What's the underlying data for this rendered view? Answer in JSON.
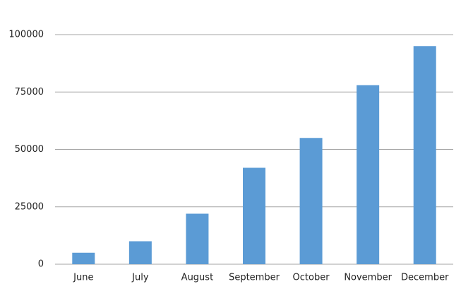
{
  "chart_data": {
    "type": "bar",
    "categories": [
      "June",
      "July",
      "August",
      "September",
      "October",
      "November",
      "December"
    ],
    "values": [
      5000,
      10000,
      22000,
      42000,
      55000,
      78000,
      95000
    ],
    "color": "#5b9bd5",
    "ylim": [
      0,
      100000
    ],
    "yticks": [
      0,
      25000,
      50000,
      75000,
      100000
    ],
    "grid": true
  }
}
